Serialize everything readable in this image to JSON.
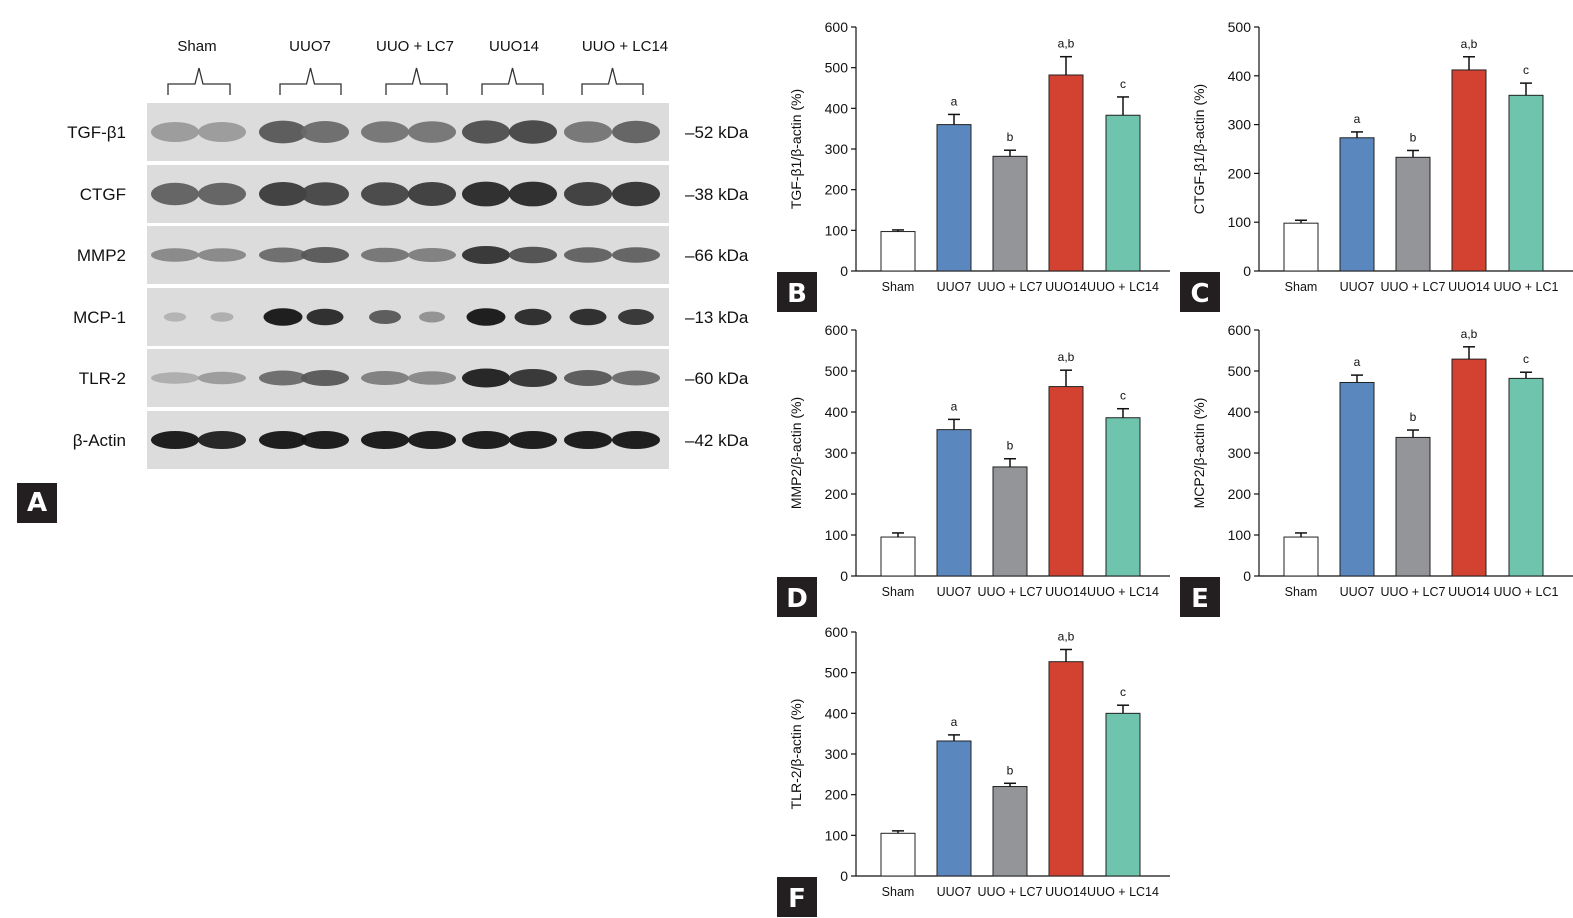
{
  "panel_labels": [
    "A",
    "B",
    "C",
    "D",
    "E",
    "F"
  ],
  "blot": {
    "groups": [
      "Sham",
      "UUO7",
      "UUO + LC7",
      "UUO14",
      "UUO + LC14"
    ],
    "rows": [
      {
        "protein": "TGF-β1",
        "kda": "–52 kDa",
        "pattern": "broad"
      },
      {
        "protein": "CTGF",
        "kda": "–38 kDa",
        "pattern": "broad"
      },
      {
        "protein": "MMP2",
        "kda": "–66 kDa",
        "pattern": "thin"
      },
      {
        "protein": "MCP-1",
        "kda": "–13 kDa",
        "pattern": "spots"
      },
      {
        "protein": "TLR-2",
        "kda": "–60 kDa",
        "pattern": "thin"
      },
      {
        "protein": "β-Actin",
        "kda": "–42 kDa",
        "pattern": "actin"
      }
    ],
    "lane_intensity": {
      "TGF-β1": [
        0.25,
        0.25,
        0.6,
        0.5,
        0.45,
        0.45,
        0.65,
        0.7,
        0.45,
        0.55
      ],
      "CTGF": [
        0.55,
        0.55,
        0.75,
        0.7,
        0.7,
        0.75,
        0.85,
        0.85,
        0.75,
        0.8
      ],
      "MMP2": [
        0.35,
        0.35,
        0.5,
        0.6,
        0.45,
        0.4,
        0.8,
        0.65,
        0.55,
        0.55
      ],
      "MCP-1": [
        0.12,
        0.15,
        0.95,
        0.85,
        0.6,
        0.3,
        0.95,
        0.85,
        0.85,
        0.8
      ],
      "TLR-2": [
        0.15,
        0.25,
        0.5,
        0.6,
        0.4,
        0.35,
        0.9,
        0.8,
        0.6,
        0.5
      ],
      "β-Actin": [
        0.95,
        0.9,
        0.95,
        0.95,
        0.95,
        0.95,
        0.95,
        0.95,
        0.95,
        0.95
      ]
    }
  },
  "colors": {
    "sham": "#ffffff",
    "uuo7": "#5b87bf",
    "lc7": "#939598",
    "uuo14": "#d34231",
    "lc14": "#6ec4ac"
  },
  "chart_data": [
    {
      "panel": "B",
      "type": "bar",
      "ylabel": "TGF-β1/β-actin (%)",
      "categories": [
        "Sham",
        "UUO7",
        "UUO + LC7",
        "UUO14",
        "UUO + LC14"
      ],
      "values": [
        97,
        360,
        282,
        482,
        383
      ],
      "errors": [
        4,
        25,
        15,
        45,
        45
      ],
      "annotations": [
        "",
        "a",
        "b",
        "a,b",
        "c"
      ],
      "ylim": [
        0,
        600
      ],
      "yticks": [
        0,
        100,
        200,
        300,
        400,
        500,
        600
      ]
    },
    {
      "panel": "C",
      "type": "bar",
      "ylabel": "CTGF-β1/β-actin (%)",
      "categories": [
        "Sham",
        "UUO7",
        "UUO + LC7",
        "UUO14",
        "UUO + LC1"
      ],
      "values": [
        98,
        273,
        233,
        412,
        360
      ],
      "errors": [
        6,
        12,
        14,
        27,
        25
      ],
      "annotations": [
        "",
        "a",
        "b",
        "a,b",
        "c"
      ],
      "ylim": [
        0,
        500
      ],
      "yticks": [
        0,
        100,
        200,
        300,
        400,
        500
      ]
    },
    {
      "panel": "D",
      "type": "bar",
      "ylabel": "MMP2/β-actin (%)",
      "categories": [
        "Sham",
        "UUO7",
        "UUO + LC7",
        "UUO14",
        "UUO + LC14"
      ],
      "values": [
        95,
        357,
        266,
        462,
        386
      ],
      "errors": [
        10,
        25,
        20,
        40,
        22
      ],
      "annotations": [
        "",
        "a",
        "b",
        "a,b",
        "c"
      ],
      "ylim": [
        0,
        600
      ],
      "yticks": [
        0,
        100,
        200,
        300,
        400,
        500,
        600
      ]
    },
    {
      "panel": "E",
      "type": "bar",
      "ylabel": "MCP2/β-actin (%)",
      "categories": [
        "Sham",
        "UUO7",
        "UUO + LC7",
        "UUO14",
        "UUO + LC1"
      ],
      "values": [
        95,
        472,
        338,
        529,
        482
      ],
      "errors": [
        10,
        18,
        18,
        30,
        15
      ],
      "annotations": [
        "",
        "a",
        "b",
        "a,b",
        "c"
      ],
      "ylim": [
        0,
        600
      ],
      "yticks": [
        0,
        100,
        200,
        300,
        400,
        500,
        600
      ]
    },
    {
      "panel": "F",
      "type": "bar",
      "ylabel": "TLR-2/β-actin (%)",
      "categories": [
        "Sham",
        "UUO7",
        "UUO + LC7",
        "UUO14",
        "UUO + LC14"
      ],
      "values": [
        105,
        332,
        220,
        527,
        400
      ],
      "errors": [
        6,
        15,
        8,
        30,
        20
      ],
      "annotations": [
        "",
        "a",
        "b",
        "a,b",
        "c"
      ],
      "ylim": [
        0,
        600
      ],
      "yticks": [
        0,
        100,
        200,
        300,
        400,
        500,
        600
      ]
    }
  ]
}
